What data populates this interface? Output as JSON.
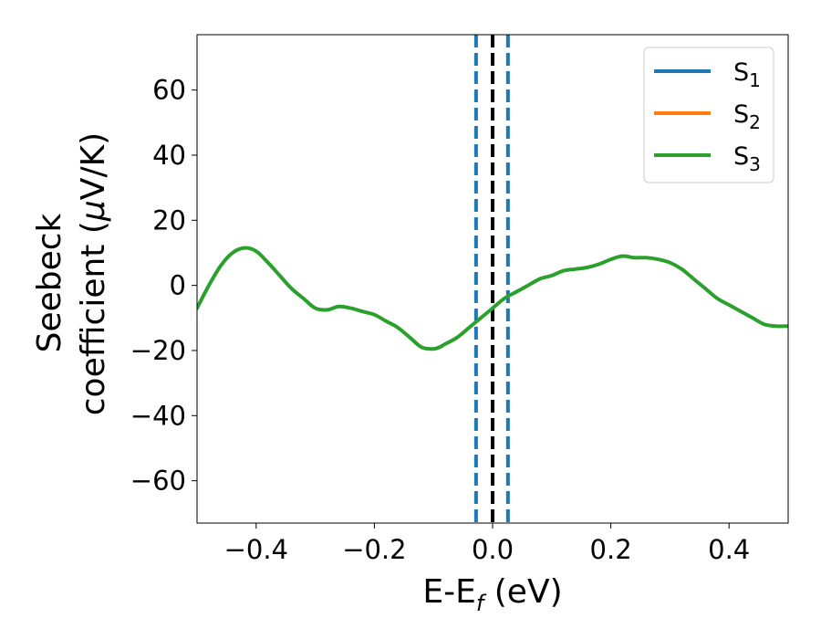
{
  "chart_data": {
    "type": "line",
    "xlabel": {
      "main": "E-E",
      "sub": "f",
      "tail": " (eV)"
    },
    "ylabel": {
      "line1": "Seebeck",
      "line2": "coefficient  (",
      "mu": "μ",
      "line2_tail": "V/K)"
    },
    "xlim": [
      -0.5,
      0.5
    ],
    "ylim": [
      -73,
      77
    ],
    "xticks": [
      -0.4,
      -0.2,
      0.0,
      0.2,
      0.4
    ],
    "xtick_labels": [
      "−0.4",
      "−0.2",
      "0.0",
      "0.2",
      "0.4"
    ],
    "yticks": [
      -60,
      -40,
      -20,
      0,
      20,
      40,
      60
    ],
    "ytick_labels": [
      "−60",
      "−40",
      "−20",
      "0",
      "20",
      "40",
      "60"
    ],
    "legend": {
      "position": "top-right"
    },
    "series": [
      {
        "name": "S",
        "subscript": "1",
        "color": "#1f77b4",
        "x": [],
        "y": []
      },
      {
        "name": "S",
        "subscript": "2",
        "color": "#ff7f0e",
        "x": [],
        "y": []
      },
      {
        "name": "S",
        "subscript": "3",
        "color": "#2ca02c",
        "x": [
          -0.5,
          -0.48,
          -0.46,
          -0.44,
          -0.42,
          -0.4,
          -0.38,
          -0.36,
          -0.34,
          -0.32,
          -0.3,
          -0.28,
          -0.26,
          -0.24,
          -0.22,
          -0.2,
          -0.18,
          -0.16,
          -0.14,
          -0.12,
          -0.1,
          -0.09,
          -0.08,
          -0.06,
          -0.04,
          -0.02,
          0.0,
          0.02,
          0.04,
          0.06,
          0.08,
          0.1,
          0.12,
          0.14,
          0.16,
          0.18,
          0.2,
          0.22,
          0.24,
          0.26,
          0.28,
          0.3,
          0.32,
          0.34,
          0.36,
          0.38,
          0.4,
          0.42,
          0.44,
          0.46,
          0.48,
          0.5
        ],
        "y": [
          -7,
          0,
          6,
          10,
          11.5,
          10.5,
          7,
          3,
          -1,
          -4,
          -7,
          -7.5,
          -6.5,
          -7,
          -8,
          -9,
          -11,
          -13,
          -16,
          -19,
          -19.5,
          -19,
          -18,
          -16,
          -13,
          -10,
          -7,
          -4,
          -2,
          0,
          2,
          3,
          4.5,
          5,
          5.5,
          6.5,
          8,
          9,
          8.5,
          8.5,
          8,
          7,
          5,
          2,
          -1,
          -4,
          -6,
          -8,
          -10,
          -12,
          -12.5,
          -12.5
        ]
      }
    ],
    "vlines": [
      {
        "x": -0.028,
        "color": "#1f77b4",
        "style": "dashed"
      },
      {
        "x": 0.0,
        "color": "#000000",
        "style": "dashed"
      },
      {
        "x": 0.026,
        "color": "#1f77b4",
        "style": "dashed"
      }
    ]
  }
}
